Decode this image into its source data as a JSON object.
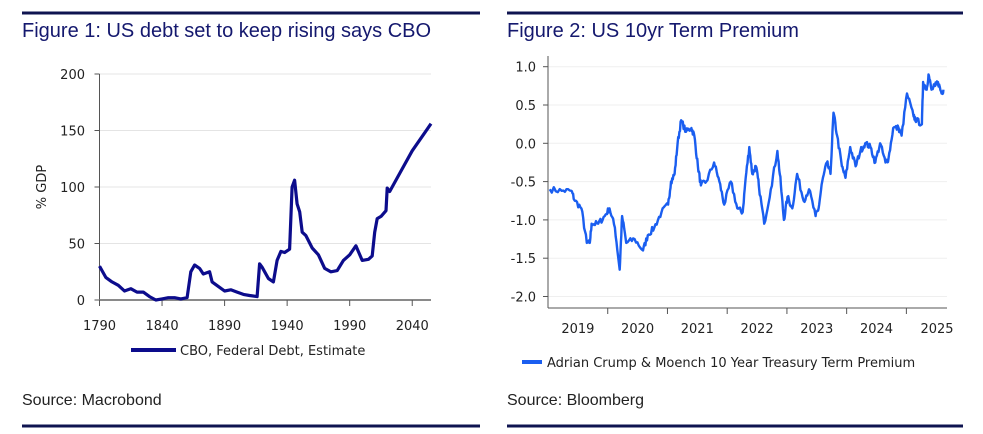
{
  "colors": {
    "rule": "#0f1450",
    "debt_line": "#0c0c8c",
    "tp_line": "#1a5ef0",
    "grid": "#e4e4e4",
    "axis": "#8a8a8a"
  },
  "chart_data": [
    {
      "type": "line",
      "title": "Figure 1: US debt set to keep rising says CBO",
      "source": "Source: Macrobond",
      "xlabel": "",
      "ylabel": "% GDP",
      "xlim": [
        1790,
        2055
      ],
      "ylim": [
        0,
        200
      ],
      "yticks": [
        "0",
        "50",
        "100",
        "150",
        "200"
      ],
      "ytick_values": [
        0,
        50,
        100,
        150,
        200
      ],
      "xticks": [
        "1790",
        "1840",
        "1890",
        "1940",
        "1990",
        "2040"
      ],
      "xtick_values": [
        1790,
        1840,
        1890,
        1940,
        1990,
        2040
      ],
      "grid": true,
      "legend_position": "bottom",
      "series": [
        {
          "name": "CBO, Federal Debt, Estimate",
          "x": [
            1790,
            1795,
            1800,
            1805,
            1810,
            1815,
            1820,
            1825,
            1830,
            1835,
            1840,
            1845,
            1850,
            1855,
            1860,
            1863,
            1866,
            1870,
            1873,
            1878,
            1880,
            1885,
            1890,
            1895,
            1900,
            1905,
            1910,
            1916,
            1918,
            1920,
            1925,
            1929,
            1932,
            1935,
            1938,
            1942,
            1944,
            1946,
            1948,
            1950,
            1952,
            1955,
            1960,
            1965,
            1970,
            1975,
            1980,
            1985,
            1990,
            1995,
            2000,
            2005,
            2008,
            2010,
            2012,
            2015,
            2019,
            2020,
            2022,
            2030,
            2040,
            2050,
            2055
          ],
          "values": [
            30,
            20,
            16,
            13,
            8,
            10,
            7,
            7,
            3,
            0,
            1,
            2,
            2,
            1,
            2,
            25,
            31,
            28,
            23,
            25,
            16,
            12,
            8,
            9,
            7,
            5,
            4,
            3,
            32,
            29,
            19,
            16,
            35,
            43,
            42,
            45,
            100,
            106,
            85,
            78,
            60,
            57,
            46,
            40,
            28,
            25,
            26,
            35,
            40,
            48,
            35,
            36,
            39,
            60,
            72,
            74,
            79,
            99,
            96,
            112,
            132,
            148,
            156
          ]
        }
      ]
    },
    {
      "type": "line",
      "title": "Figure 2: US 10yr Term Premium",
      "source": "Source: Bloomberg",
      "xlabel": "",
      "ylabel": "",
      "xlim": [
        2019.0,
        2025.68
      ],
      "ylim": [
        -2.2,
        1.1
      ],
      "yticks": [
        "1.0",
        "0.5",
        "0.0",
        "-0.5",
        "-1.0",
        "-1.5",
        "-2.0"
      ],
      "ytick_values": [
        1.0,
        0.5,
        0.0,
        -0.5,
        -1.0,
        -1.5,
        -2.0
      ],
      "xticks": [
        "2019",
        "2020",
        "2021",
        "2022",
        "2023",
        "2024",
        "2025"
      ],
      "grid": true,
      "legend_position": "bottom",
      "series": [
        {
          "name": "Adrian Crump & Moench 10 Year Treasury Term Premium",
          "x": [
            2019.03,
            2019.23,
            2019.39,
            2019.45,
            2019.56,
            2019.65,
            2019.7,
            2019.73,
            2019.84,
            2019.95,
            2020.03,
            2020.12,
            2020.2,
            2020.24,
            2020.31,
            2020.45,
            2020.59,
            2020.67,
            2020.78,
            2020.9,
            2021.01,
            2021.06,
            2021.12,
            2021.17,
            2021.23,
            2021.31,
            2021.4,
            2021.45,
            2021.51,
            2021.56,
            2021.65,
            2021.78,
            2021.87,
            2021.95,
            2022.06,
            2022.17,
            2022.26,
            2022.31,
            2022.37,
            2022.42,
            2022.48,
            2022.53,
            2022.62,
            2022.73,
            2022.84,
            2022.9,
            2022.95,
            2023.01,
            2023.09,
            2023.17,
            2023.28,
            2023.37,
            2023.48,
            2023.53,
            2023.59,
            2023.67,
            2023.73,
            2023.78,
            2023.84,
            2023.92,
            2023.98,
            2024.06,
            2024.15,
            2024.23,
            2024.31,
            2024.4,
            2024.48,
            2024.56,
            2024.65,
            2024.7,
            2024.78,
            2024.87,
            2024.92,
            2025.01,
            2025.12,
            2025.17,
            2025.26,
            2025.28,
            2025.34,
            2025.37,
            2025.42,
            2025.48,
            2025.53,
            2025.59,
            2025.62
          ],
          "values": [
            -0.6,
            -0.62,
            -0.62,
            -0.75,
            -0.85,
            -1.3,
            -1.3,
            -1.05,
            -1.05,
            -0.95,
            -0.85,
            -1.1,
            -1.65,
            -0.95,
            -1.3,
            -1.25,
            -1.4,
            -1.2,
            -1.1,
            -0.9,
            -0.8,
            -0.5,
            -0.4,
            0.0,
            0.3,
            0.15,
            0.2,
            0.1,
            -0.3,
            -0.55,
            -0.5,
            -0.25,
            -0.5,
            -0.8,
            -0.5,
            -0.85,
            -0.9,
            -0.45,
            -0.05,
            -0.4,
            -0.3,
            -0.55,
            -1.05,
            -0.6,
            -0.1,
            -0.55,
            -1.0,
            -0.7,
            -0.85,
            -0.4,
            -0.75,
            -0.6,
            -0.95,
            -0.85,
            -0.5,
            -0.25,
            -0.4,
            0.4,
            0.1,
            -0.3,
            -0.45,
            -0.05,
            -0.3,
            -0.1,
            0.0,
            -0.05,
            -0.25,
            0.0,
            -0.25,
            -0.2,
            0.2,
            0.2,
            0.1,
            0.65,
            0.35,
            0.3,
            0.25,
            0.8,
            0.7,
            0.9,
            0.7,
            0.75,
            0.8,
            0.65,
            0.7
          ]
        }
      ]
    }
  ]
}
